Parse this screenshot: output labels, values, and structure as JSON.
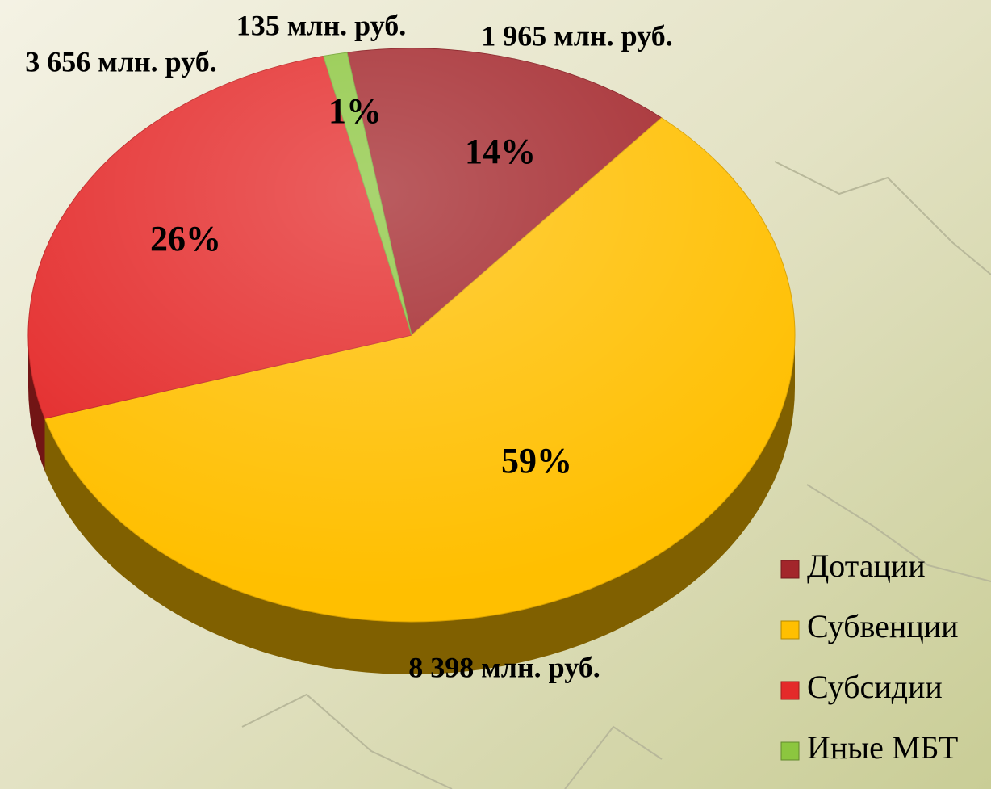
{
  "chart_data": {
    "type": "pie",
    "categories": [
      "Дотации",
      "Субвенции",
      "Субсидии",
      "Иные МБТ"
    ],
    "values": [
      14,
      59,
      26,
      1
    ],
    "value_labels": [
      "14%",
      "59%",
      "26%",
      "1%"
    ],
    "amounts": [
      1965,
      8398,
      3656,
      135
    ],
    "amount_labels": [
      "1 965 млн. руб.",
      "8 398 млн. руб.",
      "3 656 млн. руб.",
      "135 млн. руб."
    ],
    "colors": [
      "#a3262b",
      "#ffbf00",
      "#e42a2a",
      "#8cc63f"
    ],
    "legend": "right"
  }
}
